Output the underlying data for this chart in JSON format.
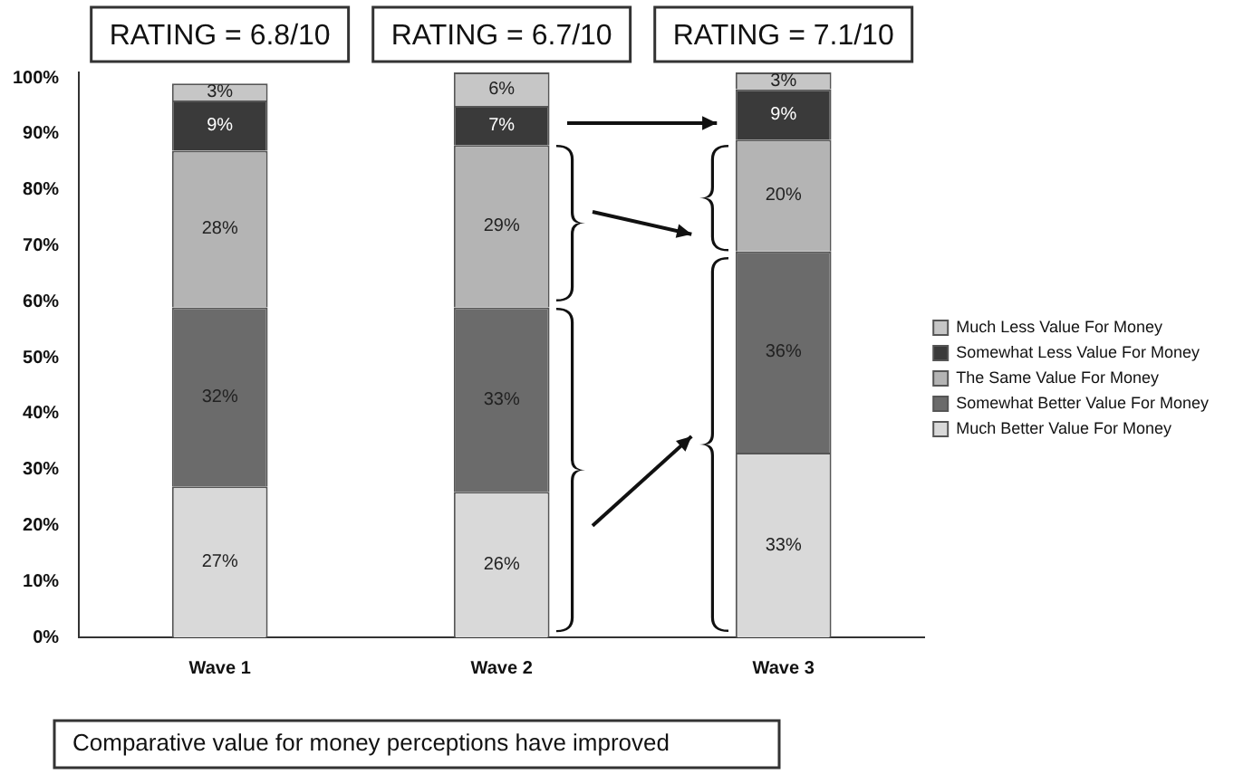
{
  "chart_data": {
    "type": "bar",
    "stacked": true,
    "categories": [
      "Wave 1",
      "Wave 2",
      "Wave 3"
    ],
    "series": [
      {
        "name": "Much Better Value For Money",
        "color": "#d9d9d9",
        "values": [
          27,
          26,
          33
        ],
        "value_labels": [
          "27%",
          "26%",
          "33%"
        ]
      },
      {
        "name": "Somewhat Better Value For Money",
        "color": "#6b6b6b",
        "values": [
          32,
          33,
          36
        ],
        "value_labels": [
          "32%",
          "33%",
          "36%"
        ]
      },
      {
        "name": "The Same Value For Money",
        "color": "#b4b4b4",
        "values": [
          28,
          29,
          20
        ],
        "value_labels": [
          "28%",
          "29%",
          "20%"
        ]
      },
      {
        "name": "Somewhat Less Value For Money",
        "color": "#3a3a3a",
        "values": [
          9,
          7,
          9
        ],
        "value_labels": [
          "9%",
          "7%",
          "9%"
        ]
      },
      {
        "name": "Much Less Value For Money",
        "color": "#c6c6c6",
        "values": [
          3,
          6,
          3
        ],
        "value_labels": [
          "3%",
          "6%",
          "3%"
        ]
      }
    ],
    "ylim": [
      0,
      101
    ],
    "yticks": [
      {
        "value": 0,
        "label": "0%"
      },
      {
        "value": 10,
        "label": "10%"
      },
      {
        "value": 20,
        "label": "20%"
      },
      {
        "value": 30,
        "label": "30%"
      },
      {
        "value": 40,
        "label": "40%"
      },
      {
        "value": 50,
        "label": "50%"
      },
      {
        "value": 60,
        "label": "60%"
      },
      {
        "value": 70,
        "label": "70%"
      },
      {
        "value": 80,
        "label": "80%"
      },
      {
        "value": 90,
        "label": "90%"
      },
      {
        "value": 100,
        "label": "100%"
      }
    ],
    "grid": false,
    "legend": "right",
    "annotations": [
      "RATING = 6.8/10",
      "RATING = 6.7/10",
      "RATING = 7.1/10",
      "Comparative value for money perceptions have improved"
    ]
  }
}
